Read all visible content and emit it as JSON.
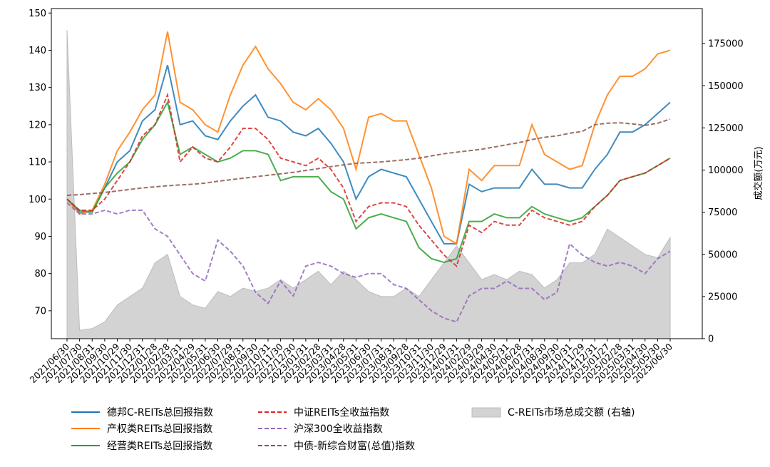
{
  "chart_data": {
    "type": "line",
    "title": "",
    "xlabel": "",
    "ylabel": "",
    "ylabel_right": "成交额(万元)",
    "ylim": [
      62.5,
      151.2
    ],
    "ylim_right": [
      0,
      195800
    ],
    "yticks": [
      70,
      80,
      90,
      100,
      110,
      120,
      130,
      140,
      150
    ],
    "yticks_right": [
      0,
      25000,
      50000,
      75000,
      100000,
      125000,
      150000,
      175000
    ],
    "grid": false,
    "legend_placement": "bottom",
    "categories": [
      "2021/06/30",
      "2021/07/30",
      "2021/08/31",
      "2021/09/30",
      "2021/10/29",
      "2021/11/30",
      "2021/12/31",
      "2022/01/28",
      "2022/02/28",
      "2022/03/31",
      "2022/04/29",
      "2022/05/31",
      "2022/06/30",
      "2022/07/29",
      "2022/08/31",
      "2022/09/30",
      "2022/10/31",
      "2022/11/30",
      "2022/12/30",
      "2023/01/31",
      "2023/02/28",
      "2023/03/31",
      "2023/04/28",
      "2023/05/31",
      "2023/06/30",
      "2023/07/31",
      "2023/08/31",
      "2023/09/28",
      "2023/10/31",
      "2023/11/30",
      "2023/12/29",
      "2024/01/31",
      "2024/02/29",
      "2024/03/29",
      "2024/04/30",
      "2024/05/31",
      "2024/06/28",
      "2024/07/31",
      "2024/08/30",
      "2024/09/30",
      "2024/10/31",
      "2024/11/29",
      "2024/12/31",
      "2025/01/27",
      "2025/02/28",
      "2025/03/31",
      "2025/04/30",
      "2025/05/30",
      "2025/06/30"
    ],
    "series": [
      {
        "name": "德邦C-REITs总回报指数",
        "color": "#1f77b4",
        "style": "solid",
        "axis": "left",
        "values": [
          100,
          96.5,
          96.5,
          103,
          110,
          113,
          121,
          124,
          136,
          120,
          121,
          117,
          116,
          121,
          125,
          128,
          122,
          121,
          118,
          117,
          119,
          115,
          110,
          100,
          106,
          108,
          107,
          106,
          100,
          94,
          88,
          88,
          104,
          102,
          103,
          103,
          103,
          108,
          104,
          104,
          103,
          103,
          108,
          112,
          118,
          118,
          120,
          123,
          126
        ]
      },
      {
        "name": "产权类REITs总回报指数",
        "color": "#ff7f0e",
        "style": "solid",
        "axis": "left",
        "values": [
          100,
          96,
          97,
          104,
          113,
          118,
          124,
          128,
          145,
          126,
          124,
          120,
          118,
          128,
          136,
          141,
          135,
          131,
          126,
          124,
          127,
          124,
          119,
          108,
          122,
          123,
          121,
          121,
          112,
          103,
          90,
          88,
          108,
          105,
          109,
          109,
          109,
          120,
          112,
          110,
          108,
          109,
          120,
          128,
          133,
          133,
          135,
          139,
          140
        ]
      },
      {
        "name": "经营类REITs总回报指数",
        "color": "#2ca02c",
        "style": "solid",
        "axis": "left",
        "values": [
          100,
          97,
          96.5,
          103,
          107,
          110,
          116,
          120,
          126,
          112,
          114,
          112,
          110,
          111,
          113,
          113,
          112,
          105,
          106,
          106,
          106,
          102,
          100,
          92,
          95,
          96,
          95,
          94,
          87,
          84,
          83,
          84,
          94,
          94,
          96,
          95,
          95,
          98,
          96,
          95,
          94,
          95,
          98,
          101,
          105,
          106,
          107,
          109,
          111
        ]
      },
      {
        "name": "中证REITs全收益指数",
        "color": "#d62728",
        "style": "dashed",
        "axis": "left",
        "values": [
          100,
          97,
          97,
          100,
          105,
          110,
          117,
          120,
          128,
          110,
          114,
          111,
          110,
          114,
          119,
          119,
          116,
          111,
          110,
          109,
          111,
          108,
          103,
          94,
          98,
          99,
          99,
          98,
          93,
          89,
          85,
          82,
          93,
          91,
          94,
          93,
          93,
          97,
          95,
          94,
          93,
          94,
          98,
          101,
          105,
          106,
          107,
          109,
          111
        ]
      },
      {
        "name": "沪深300全收益指数",
        "color": "#9467bd",
        "style": "dashed",
        "axis": "left",
        "values": [
          99,
          96,
          96,
          97,
          96,
          97,
          97,
          92,
          90,
          85,
          80,
          78,
          89,
          86,
          82,
          75,
          72,
          78,
          74,
          82,
          83,
          82,
          80,
          79,
          80,
          80,
          77,
          76,
          73,
          70,
          68,
          67,
          74,
          76,
          76,
          78,
          76,
          76,
          73,
          75,
          88,
          85,
          83,
          82,
          83,
          82,
          80,
          84,
          86
        ]
      },
      {
        "name": "中债-新综合财富(总值)指数",
        "color": "#8c564b",
        "style": "dashed",
        "axis": "left",
        "values": [
          101,
          101.2,
          101.5,
          101.8,
          102.2,
          102.6,
          103,
          103.3,
          103.6,
          103.8,
          104,
          104.3,
          104.8,
          105.2,
          105.6,
          106,
          106.4,
          106.8,
          107.2,
          107.7,
          108.2,
          108.7,
          109.2,
          109.6,
          109.8,
          110,
          110.3,
          110.6,
          111,
          111.6,
          112.2,
          112.6,
          113,
          113.4,
          114,
          114.6,
          115.2,
          116,
          116.6,
          117,
          117.7,
          118.2,
          120,
          120.4,
          120.5,
          120.2,
          119.8,
          120.4,
          121.5
        ]
      },
      {
        "name": "C-REITs市场总成交额 (右轴)",
        "color": "#d3d3d3",
        "style": "area",
        "axis": "right",
        "values": [
          183000,
          5000,
          6000,
          10000,
          20000,
          25000,
          30000,
          45000,
          50000,
          25000,
          20000,
          18000,
          28000,
          25000,
          30000,
          28000,
          30000,
          35000,
          30000,
          35000,
          40000,
          32000,
          40000,
          35000,
          28000,
          25000,
          25000,
          30000,
          25000,
          35000,
          45000,
          55000,
          45000,
          35000,
          38000,
          35000,
          40000,
          38000,
          30000,
          35000,
          45000,
          45000,
          50000,
          65000,
          60000,
          55000,
          50000,
          48000,
          60000
        ]
      }
    ]
  }
}
